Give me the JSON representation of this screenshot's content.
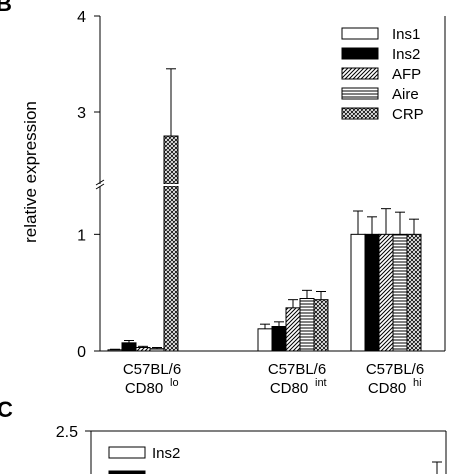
{
  "panels": {
    "b": "B",
    "c": "C"
  },
  "chart_data": [
    {
      "type": "bar",
      "ylabel": "relative expression",
      "axis_break": true,
      "yticks_lower": [
        "0",
        "1"
      ],
      "yticks_upper": [
        "3",
        "4"
      ],
      "ylim_lower": [
        0,
        1.38
      ],
      "ylim_upper": [
        2.25,
        4
      ],
      "categories": [
        {
          "line1": "C57BL/6",
          "line2": "CD80",
          "sup": "lo"
        },
        {
          "line1": "C57BL/6",
          "line2": "CD80",
          "sup": "int"
        },
        {
          "line1": "C57BL/6",
          "line2": "CD80",
          "sup": "hi"
        }
      ],
      "legend_position": "top-right",
      "series": [
        {
          "name": "Ins1",
          "pattern": "white",
          "values": [
            0.01,
            0.19,
            1.0
          ],
          "errors": [
            0.005,
            0.04,
            0.2
          ]
        },
        {
          "name": "Ins2",
          "pattern": "black",
          "values": [
            0.07,
            0.21,
            1.0
          ],
          "errors": [
            0.02,
            0.04,
            0.15
          ]
        },
        {
          "name": "AFP",
          "pattern": "diagonal",
          "values": [
            0.03,
            0.37,
            1.0
          ],
          "errors": [
            0.01,
            0.07,
            0.22
          ]
        },
        {
          "name": "Aire",
          "pattern": "horizontal",
          "values": [
            0.02,
            0.45,
            1.0
          ],
          "errors": [
            0.01,
            0.07,
            0.19
          ]
        },
        {
          "name": "CRP",
          "pattern": "crosshatch",
          "values": [
            2.75,
            0.44,
            1.0
          ],
          "errors": [
            0.7,
            0.07,
            0.13
          ]
        }
      ]
    },
    {
      "type": "bar",
      "partial": true,
      "yticks": [
        "2.5"
      ],
      "legend_position": "top-left",
      "series": [
        {
          "name": "Ins2",
          "pattern": "white"
        }
      ]
    }
  ]
}
